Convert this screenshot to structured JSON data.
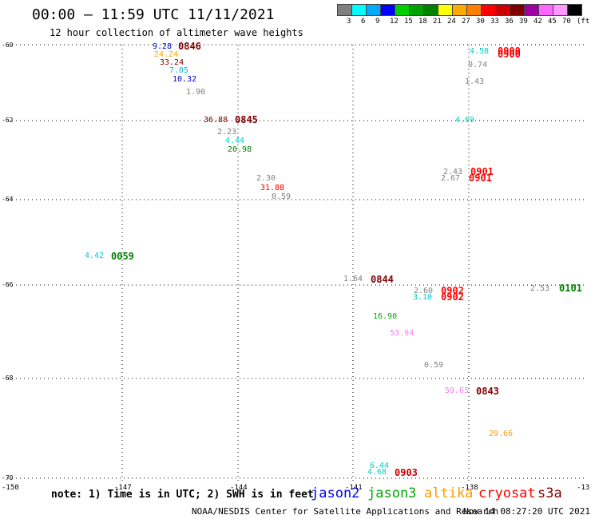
{
  "header": {
    "title": "00:00 – 11:59 UTC 11/11/2021",
    "subtitle": "12 hour collection of altimeter wave heights"
  },
  "legend": {
    "colors": [
      "#808080",
      "#00ffff",
      "#00aaff",
      "#0000ff",
      "#00d000",
      "#00a000",
      "#008000",
      "#ffff00",
      "#ffaa00",
      "#ff8000",
      "#ff0000",
      "#cc0000",
      "#800000",
      "#a000a0",
      "#ff66ff",
      "#ff99ff",
      "#000000"
    ],
    "labels": [
      "3",
      "6",
      "9",
      "12",
      "15",
      "18",
      "21",
      "24",
      "27",
      "30",
      "33",
      "36",
      "39",
      "42",
      "45",
      "70",
      "(ft)"
    ]
  },
  "axes": {
    "lat_labels": [
      "-60",
      "-62",
      "-64",
      "-66",
      "-68",
      "-70"
    ],
    "lon_labels": [
      "-150",
      "-147",
      "-144",
      "-141",
      "-138",
      "-13"
    ]
  },
  "observations": [
    {
      "text": "9.28",
      "color": "#0000cc"
    },
    {
      "text": "24.24",
      "color": "#ffaa00"
    },
    {
      "text": "33.24",
      "color": "#800000"
    },
    {
      "text": "7.05",
      "color": "#00bbdd"
    },
    {
      "text": "10.32",
      "color": "#0000cc"
    },
    {
      "text": "1.90",
      "color": "#808080"
    },
    {
      "text": "36.88",
      "color": "#800000"
    },
    {
      "text": "2.23",
      "color": "#808080"
    },
    {
      "text": "4.44",
      "color": "#00cccc"
    },
    {
      "text": "20.98",
      "color": "#008000"
    },
    {
      "text": "2.30",
      "color": "#808080"
    },
    {
      "text": "31.88",
      "color": "#ff0000"
    },
    {
      "text": "0.59",
      "color": "#808080"
    },
    {
      "text": "4.42",
      "color": "#00cccc"
    },
    {
      "text": "1.64",
      "color": "#808080"
    },
    {
      "text": "2.60",
      "color": "#808080"
    },
    {
      "text": "3.10",
      "color": "#00cccc"
    },
    {
      "text": "16.90",
      "color": "#00aa00"
    },
    {
      "text": "53.94",
      "color": "#ff77ff"
    },
    {
      "text": "0.59",
      "color": "#808080"
    },
    {
      "text": "59.65",
      "color": "#ff77ff"
    },
    {
      "text": "29.66",
      "color": "#ff9900"
    },
    {
      "text": "6.44",
      "color": "#00cccc"
    },
    {
      "text": "4.68",
      "color": "#00cccc"
    },
    {
      "text": "4.58",
      "color": "#00cccc"
    },
    {
      "text": "0.74",
      "color": "#808080"
    },
    {
      "text": "1.43",
      "color": "#808080"
    },
    {
      "text": "4.69",
      "color": "#00cccc"
    },
    {
      "text": "2.43",
      "color": "#808080"
    },
    {
      "text": "2.67",
      "color": "#808080"
    },
    {
      "text": "2.53",
      "color": "#808080"
    }
  ],
  "time_labels": [
    {
      "text": "0846",
      "color": "#800000"
    },
    {
      "text": "0845",
      "color": "#800000"
    },
    {
      "text": "0059",
      "color": "#008000"
    },
    {
      "text": "0844",
      "color": "#800000"
    },
    {
      "text": "0902",
      "color": "#ff0000"
    },
    {
      "text": "0902",
      "color": "#ff0000"
    },
    {
      "text": "0843",
      "color": "#800000"
    },
    {
      "text": "0903",
      "color": "#cc0000"
    },
    {
      "text": "0900",
      "color": "#ff0000"
    },
    {
      "text": "0900",
      "color": "#ff0000"
    },
    {
      "text": "0901",
      "color": "#ff0000"
    },
    {
      "text": "0901",
      "color": "#ff0000"
    },
    {
      "text": "0101",
      "color": "#008000"
    }
  ],
  "footer": {
    "note": "note: 1) Time is in UTC; 2) SWH is in feet",
    "satellites": [
      {
        "name": "jason2",
        "color": "#0000ff"
      },
      {
        "name": "jason3",
        "color": "#00aa00"
      },
      {
        "name": "altika",
        "color": "#ff9900"
      },
      {
        "name": "cryosat",
        "color": "#ff0000"
      },
      {
        "name": "s3a",
        "color": "#800000"
      }
    ],
    "credit": "NOAA/NESDIS Center for Satellite Applications and Research",
    "timestamp": "Nov 14 08:27:20 UTC 2021"
  }
}
